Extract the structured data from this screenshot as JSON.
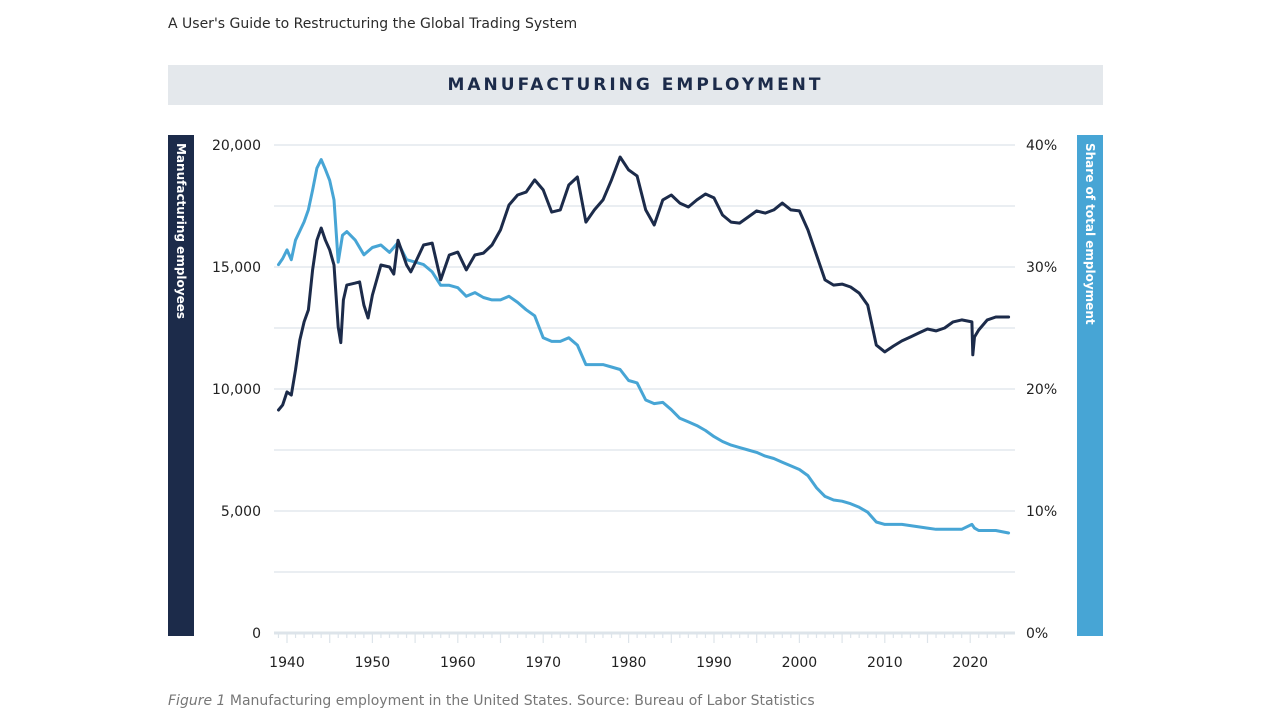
{
  "document": {
    "header": "A User's Guide to Restructuring the Global Trading System",
    "caption_label": "Figure 1",
    "caption_text": "Manufacturing employment in the United States. Source: Bureau of Labor Statistics"
  },
  "colors": {
    "employees": "#1c2b4a",
    "share": "#47a5d5",
    "title_bar": "#e4e8ec",
    "grid": "#dde4ea"
  },
  "chart_data": {
    "type": "line",
    "title": "MANUFACTURING EMPLOYMENT",
    "xlabel": "",
    "ylabel": "Manufacturing employees",
    "y2label": "Share of total employment",
    "xlim": [
      1938,
      2025
    ],
    "ylim": [
      0,
      20000
    ],
    "y2lim": [
      0,
      40
    ],
    "grid": true,
    "x_ticks": [
      1940,
      1950,
      1960,
      1970,
      1980,
      1990,
      2000,
      2010,
      2020
    ],
    "y_ticks": [
      {
        "value": 0,
        "label": "0"
      },
      {
        "value": 5000,
        "label": "5,000"
      },
      {
        "value": 10000,
        "label": "10,000"
      },
      {
        "value": 15000,
        "label": "15,000"
      },
      {
        "value": 20000,
        "label": "20,000"
      }
    ],
    "y_gridlines": [
      0,
      2500,
      5000,
      7500,
      10000,
      12500,
      15000,
      17500,
      20000
    ],
    "y2_ticks": [
      {
        "value": 0,
        "label": "0%"
      },
      {
        "value": 10,
        "label": "10%"
      },
      {
        "value": 20,
        "label": "20%"
      },
      {
        "value": 30,
        "label": "30%"
      },
      {
        "value": 40,
        "label": "40%"
      }
    ],
    "series": [
      {
        "name": "Manufacturing employees",
        "axis": "left",
        "x": [
          1939,
          1939.5,
          1940,
          1940.5,
          1941,
          1941.5,
          1942,
          1942.5,
          1943,
          1943.5,
          1944,
          1944.5,
          1945,
          1945.5,
          1946,
          1946.3,
          1946.6,
          1947,
          1948,
          1948.5,
          1949,
          1949.5,
          1950,
          1951,
          1952,
          1952.5,
          1953,
          1954,
          1954.5,
          1955,
          1956,
          1957,
          1958,
          1959,
          1960,
          1961,
          1962,
          1963,
          1964,
          1965,
          1966,
          1967,
          1968,
          1969,
          1970,
          1971,
          1972,
          1973,
          1974,
          1975,
          1976,
          1977,
          1978,
          1979,
          1980,
          1981,
          1982,
          1983,
          1984,
          1985,
          1986,
          1987,
          1988,
          1989,
          1990,
          1991,
          1992,
          1993,
          1994,
          1995,
          1996,
          1997,
          1998,
          1999,
          2000,
          2001,
          2002,
          2003,
          2004,
          2005,
          2006,
          2007,
          2008,
          2009,
          2010,
          2011,
          2012,
          2013,
          2014,
          2015,
          2016,
          2017,
          2018,
          2019,
          2020.2,
          2020.3,
          2020.5,
          2021,
          2022,
          2023,
          2024.5
        ],
        "values": [
          9140,
          9350,
          9880,
          9750,
          10780,
          12000,
          12750,
          13240,
          14880,
          16100,
          16600,
          16100,
          15700,
          15080,
          12540,
          11900,
          13650,
          14260,
          14340,
          14390,
          13440,
          12910,
          13850,
          15080,
          15000,
          14710,
          16100,
          15080,
          14800,
          15160,
          15900,
          15980,
          14470,
          15490,
          15610,
          14880,
          15490,
          15570,
          15900,
          16520,
          17540,
          17950,
          18070,
          18570,
          18160,
          17250,
          17340,
          18360,
          18690,
          16840,
          17340,
          17750,
          18570,
          19510,
          18980,
          18730,
          17340,
          16720,
          17750,
          17950,
          17620,
          17460,
          17750,
          17990,
          17830,
          17130,
          16840,
          16800,
          17050,
          17300,
          17210,
          17340,
          17620,
          17340,
          17300,
          16520,
          15490,
          14470,
          14260,
          14300,
          14180,
          13930,
          13440,
          11800,
          11520,
          11760,
          11970,
          12130,
          12300,
          12460,
          12380,
          12500,
          12750,
          12830,
          12750,
          11400,
          12130,
          12420,
          12830,
          12950,
          12950
        ]
      },
      {
        "name": "Share of total employment",
        "axis": "right",
        "x": [
          1939,
          1939.5,
          1940,
          1940.5,
          1941,
          1942,
          1942.5,
          1943,
          1943.5,
          1944,
          1944.5,
          1945,
          1945.5,
          1946,
          1946.5,
          1947,
          1948,
          1949,
          1950,
          1951,
          1952,
          1953,
          1954,
          1955,
          1956,
          1957,
          1958,
          1959,
          1960,
          1961,
          1962,
          1963,
          1964,
          1965,
          1966,
          1967,
          1968,
          1969,
          1970,
          1971,
          1972,
          1973,
          1974,
          1975,
          1976,
          1977,
          1978,
          1979,
          1980,
          1981,
          1982,
          1983,
          1984,
          1985,
          1986,
          1987,
          1988,
          1989,
          1990,
          1991,
          1992,
          1993,
          1994,
          1995,
          1996,
          1997,
          1998,
          1999,
          2000,
          2001,
          2002,
          2003,
          2004,
          2005,
          2006,
          2007,
          2008,
          2009,
          2010,
          2011,
          2012,
          2013,
          2014,
          2015,
          2016,
          2017,
          2018,
          2019,
          2020.2,
          2020.5,
          2021,
          2022,
          2023,
          2024.5
        ],
        "values": [
          30.2,
          30.7,
          31.4,
          30.6,
          32.2,
          33.7,
          34.7,
          36.3,
          38.1,
          38.8,
          38.0,
          37.1,
          35.5,
          30.4,
          32.6,
          32.9,
          32.2,
          31.0,
          31.6,
          31.8,
          31.2,
          32.0,
          30.6,
          30.4,
          30.2,
          29.6,
          28.5,
          28.5,
          28.3,
          27.6,
          27.9,
          27.5,
          27.3,
          27.3,
          27.6,
          27.1,
          26.5,
          26.0,
          24.2,
          23.9,
          23.9,
          24.2,
          23.6,
          22.0,
          22.0,
          22.0,
          21.8,
          21.6,
          20.7,
          20.5,
          19.1,
          18.8,
          18.9,
          18.3,
          17.6,
          17.3,
          17.0,
          16.6,
          16.1,
          15.7,
          15.4,
          15.2,
          15.0,
          14.8,
          14.5,
          14.3,
          14.0,
          13.7,
          13.4,
          12.9,
          11.9,
          11.2,
          10.9,
          10.8,
          10.6,
          10.3,
          9.9,
          9.1,
          8.9,
          8.9,
          8.9,
          8.8,
          8.7,
          8.6,
          8.5,
          8.5,
          8.5,
          8.5,
          8.9,
          8.6,
          8.4,
          8.4,
          8.4,
          8.2
        ]
      }
    ]
  }
}
